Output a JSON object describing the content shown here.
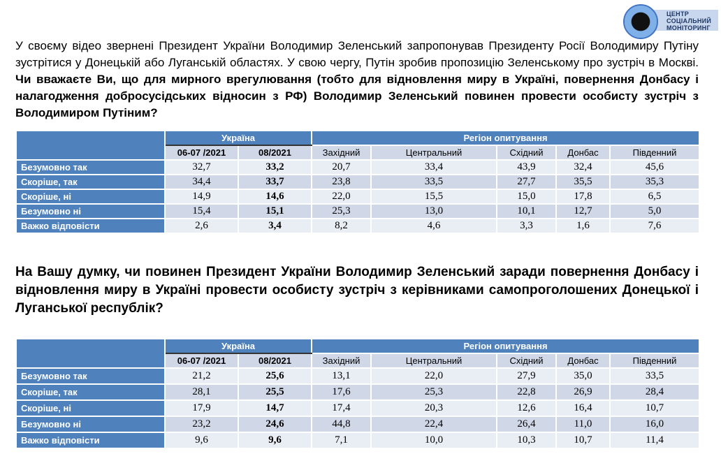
{
  "logo": {
    "lines": [
      "ЦЕНТР",
      "СОЦІАЛЬНИЙ",
      "МОНІТОРИНГ"
    ]
  },
  "q1": {
    "intro": "У своєму відео звернені Президент України Володимир Зеленський запропонував Президенту Росії Володимиру Путіну зустрітися у Донецькій або Луганській областях. У свою чергу, Путін зробив пропозицію Зеленському про зустріч в Москві.",
    "question": "Чи вважаєте Ви, що для мирного врегулювання (тобто для відновлення миру в Україні, повернення Донбасу і налагодження добросусідських відносин з РФ) Володимир Зеленський повинен провести особисту зустріч з Володимиром Путіним?"
  },
  "q2": {
    "question": "На Вашу думку, чи повинен Президент України Володимир Зеленський заради повернення Донбасу і відновлення миру в Україні провести особисту зустріч з керівниками самопроголошених Донецької і Луганської республік?"
  },
  "header": {
    "ukraine": "Україна",
    "region": "Регіон опитування",
    "cols": [
      "06-07 /2021",
      "08/2021",
      "Західний",
      "Центральний",
      "Східний",
      "Донбас",
      "Південний"
    ]
  },
  "table1": [
    {
      "label": "Безумовно так",
      "values": [
        "32,7",
        "33,2",
        "20,7",
        "33,4",
        "43,9",
        "32,4",
        "45,6"
      ]
    },
    {
      "label": "Скоріше, так",
      "values": [
        "34,4",
        "33,7",
        "23,8",
        "33,5",
        "27,7",
        "35,5",
        "35,3"
      ]
    },
    {
      "label": "Скоріше, ні",
      "values": [
        "14,9",
        "14,6",
        "22,0",
        "15,5",
        "15,0",
        "17,8",
        "6,5"
      ]
    },
    {
      "label": "Безумовно ні",
      "values": [
        "15,4",
        "15,1",
        "25,3",
        "13,0",
        "10,1",
        "12,7",
        "5,0"
      ]
    },
    {
      "label": "Важко відповісти",
      "values": [
        "2,6",
        "3,4",
        "8,2",
        "4,6",
        "3,3",
        "1,6",
        "7,6"
      ]
    }
  ],
  "table2": [
    {
      "label": "Безумовно так",
      "values": [
        "21,2",
        "25,6",
        "13,1",
        "22,0",
        "27,9",
        "35,0",
        "33,5"
      ]
    },
    {
      "label": "Скоріше, так",
      "values": [
        "28,1",
        "25,5",
        "17,6",
        "25,3",
        "22,8",
        "26,9",
        "28,4"
      ]
    },
    {
      "label": "Скоріше, ні",
      "values": [
        "17,9",
        "14,7",
        "17,4",
        "20,3",
        "12,6",
        "16,4",
        "10,7"
      ]
    },
    {
      "label": "Безумовно ні",
      "values": [
        "23,2",
        "24,6",
        "44,8",
        "22,4",
        "26,4",
        "11,0",
        "16,0"
      ]
    },
    {
      "label": "Важко відповісти",
      "values": [
        "9,6",
        "9,6",
        "7,1",
        "10,0",
        "10,3",
        "10,7",
        "11,4"
      ]
    }
  ]
}
